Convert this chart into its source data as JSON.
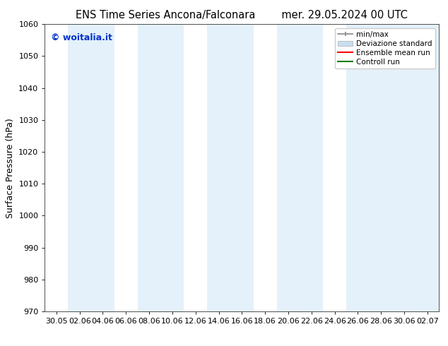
{
  "title_left": "ENS Time Series Ancona/Falconara",
  "title_right": "mer. 29.05.2024 00 UTC",
  "ylabel": "Surface Pressure (hPa)",
  "ylim": [
    970,
    1060
  ],
  "yticks": [
    970,
    980,
    990,
    1000,
    1010,
    1020,
    1030,
    1040,
    1050,
    1060
  ],
  "xtick_labels": [
    "30.05",
    "02.06",
    "04.06",
    "06.06",
    "08.06",
    "10.06",
    "12.06",
    "14.06",
    "16.06",
    "18.06",
    "20.06",
    "22.06",
    "24.06",
    "26.06",
    "28.06",
    "30.06",
    "02.07"
  ],
  "watermark": "© woitalia.it",
  "watermark_color": "#0033cc",
  "background_color": "#ffffff",
  "plot_bg_color": "#ffffff",
  "band_color": "#d6eaf8",
  "band_alpha": 0.65,
  "legend_labels": [
    "min/max",
    "Deviazione standard",
    "Ensemble mean run",
    "Controll run"
  ],
  "legend_minmax_color": "#888888",
  "legend_dev_color": "#c8dff0",
  "legend_ens_color": "#ff0000",
  "legend_ctrl_color": "#008000",
  "title_fontsize": 10.5,
  "ylabel_fontsize": 9,
  "tick_fontsize": 8,
  "legend_fontsize": 7.5,
  "watermark_fontsize": 9
}
